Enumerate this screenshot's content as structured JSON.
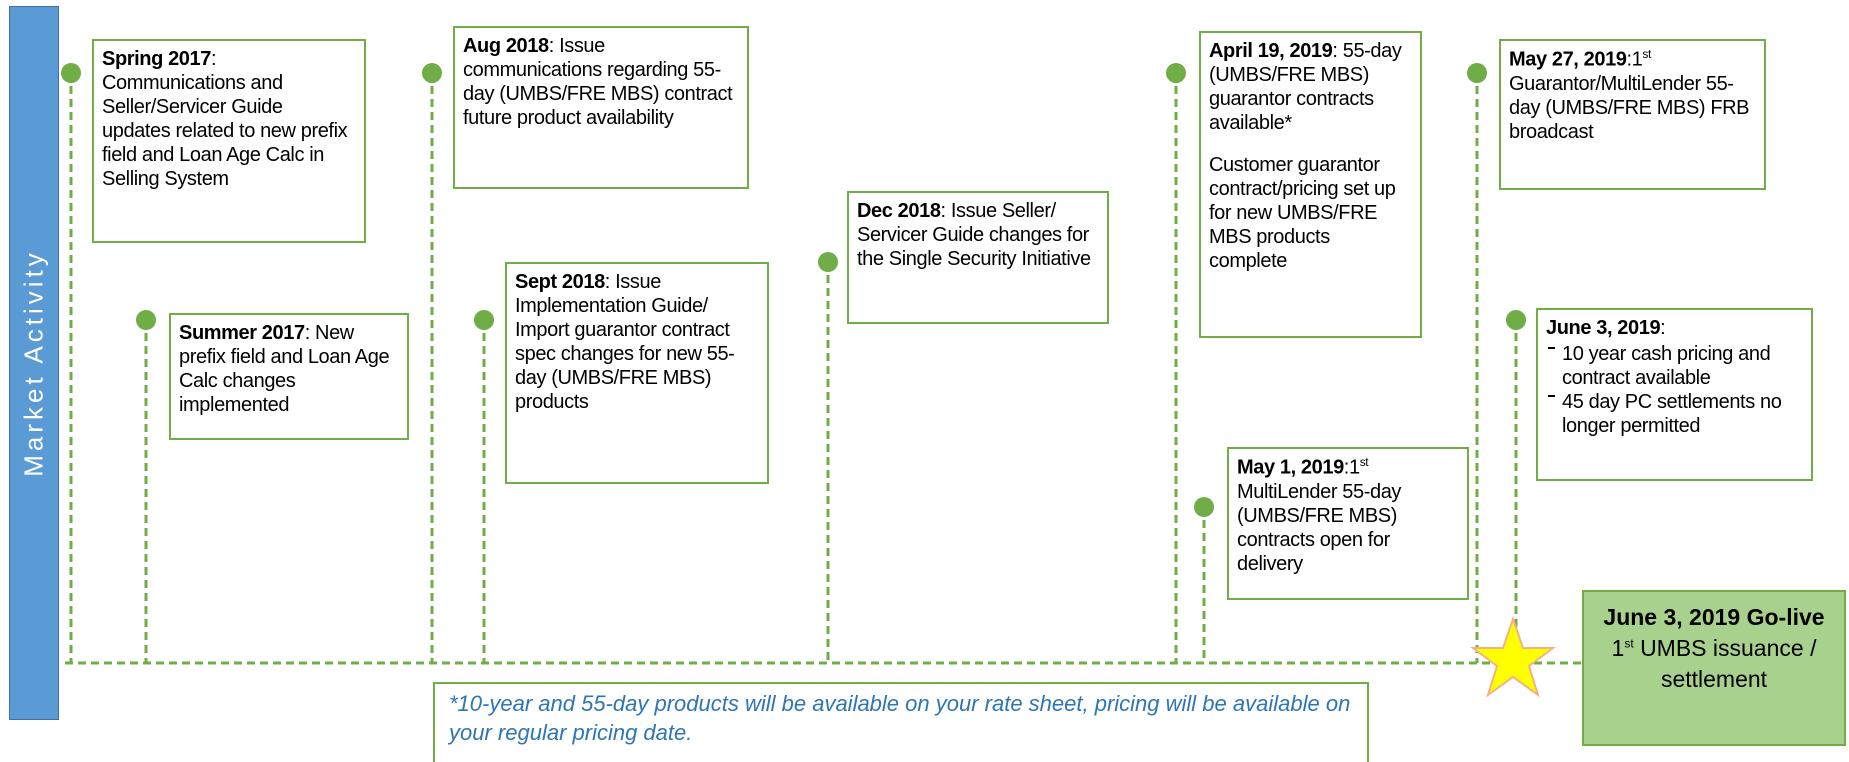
{
  "side_label": "Market Activity",
  "events": [
    {
      "title": "Spring 2017",
      "lead": ":",
      "body": [
        "Communications and Seller/Servicer Guide updates related to new prefix field and Loan Age Calc in Selling System"
      ]
    },
    {
      "title": "Summer 2017",
      "lead": ":",
      "body": [
        "New prefix field and Loan Age Calc changes implemented"
      ]
    },
    {
      "title": "Aug 2018",
      "lead": ":",
      "body": [
        "Issue communications regarding 55-day (UMBS/FRE MBS) contract future product availability"
      ]
    },
    {
      "title": "Sept 2018",
      "lead": ":",
      "body": [
        "Issue Implementation Guide/ Import guarantor contract spec changes for new 55-day (UMBS/FRE MBS) products"
      ]
    },
    {
      "title": "Dec 2018",
      "lead": ":",
      "body": [
        "Issue Seller/ Servicer Guide changes for the Single Security Initiative"
      ]
    },
    {
      "title": "April 19, 2019",
      "lead": ":",
      "body": [
        "55-day (UMBS/FRE MBS) guarantor contracts available*",
        "Customer guarantor contract/pricing set up for new UMBS/FRE MBS products complete"
      ]
    },
    {
      "title": "May 1, 2019",
      "lead": ":1",
      "sup": "st",
      "body": [
        "MultiLender 55-day (UMBS/FRE MBS) contracts open for delivery"
      ]
    },
    {
      "title": "May 27, 2019",
      "lead": ":1",
      "sup": "st",
      "body": [
        "Guarantor/MultiLender 55-day (UMBS/FRE MBS) FRB broadcast"
      ]
    },
    {
      "title": "June 3, 2019",
      "lead": ":",
      "bullets": [
        "10 year cash pricing and contract available",
        "45 day PC settlements no longer permitted"
      ]
    }
  ],
  "go_live": {
    "title": "June 3, 2019 Go-live",
    "lead": "1",
    "sup": "st",
    "text": "UMBS issuance / settlement"
  },
  "footnote": "*10-year and 55-day products will be available on your rate sheet, pricing will be available on your regular pricing date."
}
